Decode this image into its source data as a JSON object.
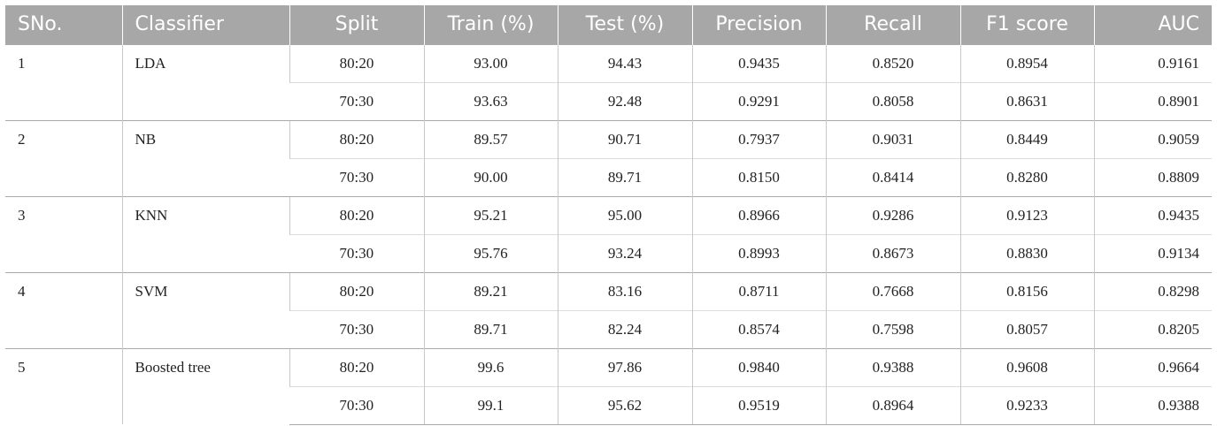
{
  "columns": [
    "SNo.",
    "Classifier",
    "Split",
    "Train (%)",
    "Test (%)",
    "Precision",
    "Recall",
    "F1 score",
    "AUC"
  ],
  "groups": [
    {
      "sno": "1",
      "classifier": "LDA",
      "rows": [
        {
          "split": "80:20",
          "train": "93.00",
          "test": "94.43",
          "precision": "0.9435",
          "recall": "0.8520",
          "f1": "0.8954",
          "auc": "0.9161"
        },
        {
          "split": "70:30",
          "train": "93.63",
          "test": "92.48",
          "precision": "0.9291",
          "recall": "0.8058",
          "f1": "0.8631",
          "auc": "0.8901"
        }
      ]
    },
    {
      "sno": "2",
      "classifier": "NB",
      "rows": [
        {
          "split": "80:20",
          "train": "89.57",
          "test": "90.71",
          "precision": "0.7937",
          "recall": "0.9031",
          "f1": "0.8449",
          "auc": "0.9059"
        },
        {
          "split": "70:30",
          "train": "90.00",
          "test": "89.71",
          "precision": "0.8150",
          "recall": "0.8414",
          "f1": "0.8280",
          "auc": "0.8809"
        }
      ]
    },
    {
      "sno": "3",
      "classifier": "KNN",
      "rows": [
        {
          "split": "80:20",
          "train": "95.21",
          "test": "95.00",
          "precision": "0.8966",
          "recall": "0.9286",
          "f1": "0.9123",
          "auc": "0.9435"
        },
        {
          "split": "70:30",
          "train": "95.76",
          "test": "93.24",
          "precision": "0.8993",
          "recall": "0.8673",
          "f1": "0.8830",
          "auc": "0.9134"
        }
      ]
    },
    {
      "sno": "4",
      "classifier": "SVM",
      "rows": [
        {
          "split": "80:20",
          "train": "89.21",
          "test": "83.16",
          "precision": "0.8711",
          "recall": "0.7668",
          "f1": "0.8156",
          "auc": "0.8298"
        },
        {
          "split": "70:30",
          "train": "89.71",
          "test": "82.24",
          "precision": "0.8574",
          "recall": "0.7598",
          "f1": "0.8057",
          "auc": "0.8205"
        }
      ]
    },
    {
      "sno": "5",
      "classifier": "Boosted tree",
      "rows": [
        {
          "split": "80:20",
          "train": "99.6",
          "test": "97.86",
          "precision": "0.9840",
          "recall": "0.9388",
          "f1": "0.9608",
          "auc": "0.9664"
        },
        {
          "split": "70:30",
          "train": "99.1",
          "test": "95.62",
          "precision": "0.9519",
          "recall": "0.8964",
          "f1": "0.9233",
          "auc": "0.9388"
        }
      ]
    }
  ]
}
